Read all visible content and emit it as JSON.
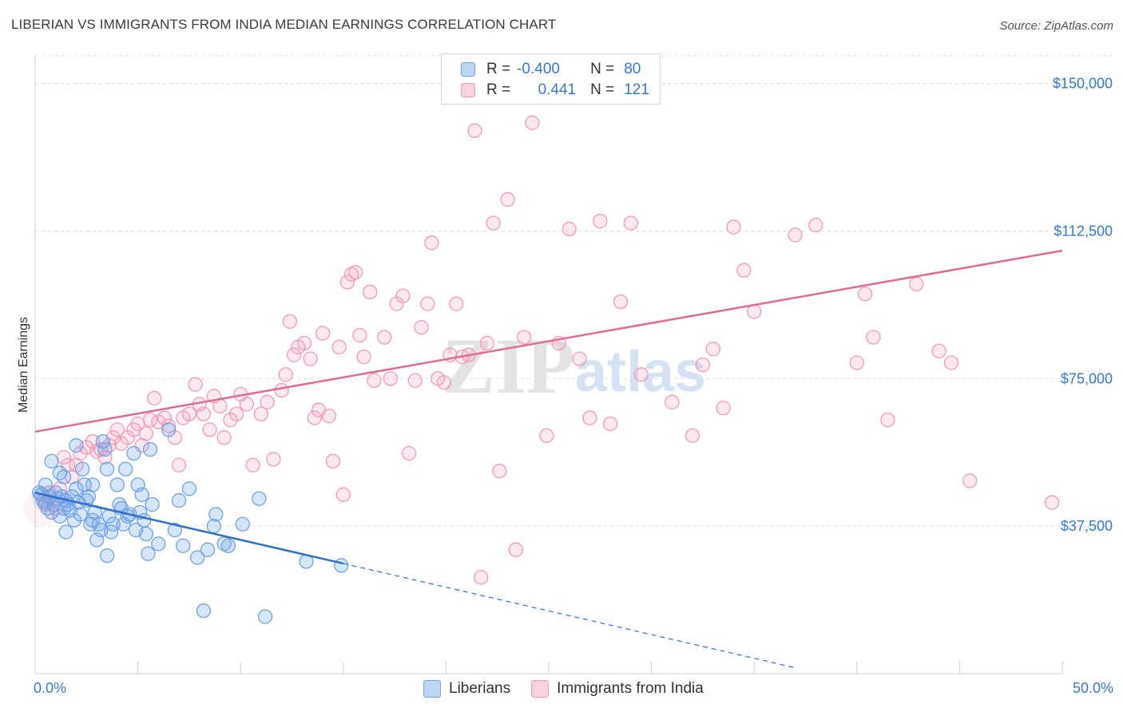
{
  "header": {
    "title": "LIBERIAN VS IMMIGRANTS FROM INDIA MEDIAN EARNINGS CORRELATION CHART",
    "source": "Source: ZipAtlas.com"
  },
  "legend": {
    "rows": [
      {
        "r_label": "R =",
        "r_value": "-0.400",
        "n_label": "N =",
        "n_value": "80",
        "color": "#6fa3e6"
      },
      {
        "r_label": "R =",
        "r_value": "0.441",
        "n_label": "N =",
        "n_value": "121",
        "color": "#f29ab8"
      }
    ],
    "items": [
      {
        "label": "Liberians",
        "color": "#6fa3e6"
      },
      {
        "label": "Immigrants from India",
        "color": "#f29ab8"
      }
    ]
  },
  "watermark": {
    "part1": "ZIP",
    "part2": "atlas"
  },
  "chart_data": {
    "type": "scatter",
    "xlabel": "",
    "ylabel": "Median Earnings",
    "xlim": [
      0,
      50
    ],
    "ylim": [
      0,
      157000
    ],
    "x_tick_labels": [
      "0.0%",
      "50.0%"
    ],
    "y_ticks": [
      {
        "value": 37500,
        "label": "$37,500"
      },
      {
        "value": 75000,
        "label": "$75,000"
      },
      {
        "value": 112500,
        "label": "$112,500"
      },
      {
        "value": 150000,
        "label": "$150,000"
      }
    ],
    "series": [
      {
        "name": "Liberians",
        "color": "#6fa3e6",
        "line_color": "#2f6fcc",
        "trend": {
          "x0": 0,
          "y0": 46000,
          "x1": 15,
          "y1": 28000,
          "dash_x1": 37,
          "dash_y1": 1500
        },
        "points": [
          [
            0.2,
            46000
          ],
          [
            0.3,
            45500
          ],
          [
            0.4,
            44000
          ],
          [
            0.5,
            43500
          ],
          [
            0.5,
            48000
          ],
          [
            0.6,
            42000
          ],
          [
            0.7,
            45000
          ],
          [
            0.8,
            41000
          ],
          [
            0.8,
            54000
          ],
          [
            0.9,
            43000
          ],
          [
            1.0,
            46000
          ],
          [
            1.1,
            44500
          ],
          [
            1.2,
            40000
          ],
          [
            1.2,
            51000
          ],
          [
            1.3,
            45000
          ],
          [
            1.4,
            42000
          ],
          [
            1.4,
            50000
          ],
          [
            1.5,
            36000
          ],
          [
            1.5,
            44000
          ],
          [
            1.6,
            43000
          ],
          [
            1.7,
            41500
          ],
          [
            1.8,
            45000
          ],
          [
            1.9,
            39000
          ],
          [
            2.0,
            58000
          ],
          [
            2.0,
            47000
          ],
          [
            2.1,
            43500
          ],
          [
            2.2,
            40500
          ],
          [
            2.3,
            52000
          ],
          [
            2.4,
            48000
          ],
          [
            2.5,
            44000
          ],
          [
            2.6,
            45000
          ],
          [
            2.7,
            38000
          ],
          [
            2.8,
            48000
          ],
          [
            2.9,
            41000
          ],
          [
            3.0,
            34000
          ],
          [
            3.1,
            38000
          ],
          [
            3.2,
            36500
          ],
          [
            3.3,
            59000
          ],
          [
            3.4,
            57000
          ],
          [
            3.5,
            52000
          ],
          [
            3.5,
            30000
          ],
          [
            3.6,
            40000
          ],
          [
            3.7,
            36000
          ],
          [
            3.8,
            38000
          ],
          [
            4.0,
            48000
          ],
          [
            4.1,
            43000
          ],
          [
            4.2,
            42000
          ],
          [
            4.3,
            38000
          ],
          [
            4.4,
            52000
          ],
          [
            4.5,
            40000
          ],
          [
            4.6,
            40500
          ],
          [
            4.8,
            56000
          ],
          [
            4.9,
            36500
          ],
          [
            5.0,
            48000
          ],
          [
            5.1,
            41000
          ],
          [
            5.2,
            45500
          ],
          [
            5.3,
            39000
          ],
          [
            5.4,
            35500
          ],
          [
            5.5,
            30500
          ],
          [
            5.6,
            57000
          ],
          [
            5.7,
            43000
          ],
          [
            6.0,
            33000
          ],
          [
            6.5,
            62000
          ],
          [
            6.8,
            36500
          ],
          [
            7.0,
            44000
          ],
          [
            7.2,
            32500
          ],
          [
            7.5,
            47000
          ],
          [
            7.9,
            29500
          ],
          [
            8.2,
            16000
          ],
          [
            8.4,
            31500
          ],
          [
            8.7,
            37500
          ],
          [
            8.8,
            40500
          ],
          [
            9.2,
            33000
          ],
          [
            9.4,
            32500
          ],
          [
            10.1,
            38000
          ],
          [
            10.9,
            44500
          ],
          [
            11.2,
            14500
          ],
          [
            13.2,
            28500
          ],
          [
            14.9,
            27500
          ],
          [
            2.8,
            39000
          ]
        ]
      },
      {
        "name": "Immigrants from India",
        "color": "#f29ab8",
        "line_color": "#e06b95",
        "trend": {
          "x0": 0,
          "y0": 61500,
          "x1": 50,
          "y1": 107500
        },
        "points": [
          [
            0.5,
            43000
          ],
          [
            0.7,
            46000
          ],
          [
            1.0,
            42000
          ],
          [
            1.2,
            47000
          ],
          [
            1.4,
            55000
          ],
          [
            1.6,
            53000
          ],
          [
            1.8,
            50000
          ],
          [
            2.0,
            53000
          ],
          [
            2.2,
            56000
          ],
          [
            2.5,
            57500
          ],
          [
            2.8,
            59000
          ],
          [
            3.0,
            56500
          ],
          [
            3.2,
            57000
          ],
          [
            3.4,
            55000
          ],
          [
            3.6,
            58000
          ],
          [
            3.8,
            60000
          ],
          [
            4.0,
            62000
          ],
          [
            4.2,
            58500
          ],
          [
            4.5,
            60000
          ],
          [
            4.8,
            62000
          ],
          [
            5.0,
            63500
          ],
          [
            5.2,
            58000
          ],
          [
            5.4,
            61000
          ],
          [
            5.6,
            64500
          ],
          [
            5.8,
            70000
          ],
          [
            6.0,
            64000
          ],
          [
            6.3,
            65000
          ],
          [
            6.5,
            63000
          ],
          [
            6.8,
            60000
          ],
          [
            7.0,
            53000
          ],
          [
            7.2,
            65000
          ],
          [
            7.5,
            66000
          ],
          [
            7.8,
            73500
          ],
          [
            8.0,
            68500
          ],
          [
            8.2,
            66000
          ],
          [
            8.5,
            62000
          ],
          [
            8.7,
            70500
          ],
          [
            9.0,
            68000
          ],
          [
            9.2,
            60000
          ],
          [
            9.5,
            64500
          ],
          [
            9.8,
            66000
          ],
          [
            10.0,
            71000
          ],
          [
            10.3,
            68500
          ],
          [
            10.6,
            53000
          ],
          [
            11.0,
            66000
          ],
          [
            11.3,
            69000
          ],
          [
            11.6,
            54500
          ],
          [
            12.0,
            72000
          ],
          [
            12.2,
            76000
          ],
          [
            12.4,
            89500
          ],
          [
            12.6,
            81000
          ],
          [
            12.8,
            83000
          ],
          [
            13.1,
            84000
          ],
          [
            13.4,
            80000
          ],
          [
            13.6,
            65000
          ],
          [
            13.8,
            67000
          ],
          [
            14.0,
            86500
          ],
          [
            14.3,
            65500
          ],
          [
            14.5,
            54000
          ],
          [
            14.8,
            83000
          ],
          [
            15.0,
            45500
          ],
          [
            15.2,
            99500
          ],
          [
            15.4,
            101500
          ],
          [
            15.6,
            102000
          ],
          [
            15.8,
            86000
          ],
          [
            16.0,
            80500
          ],
          [
            16.3,
            97000
          ],
          [
            16.5,
            74500
          ],
          [
            17.0,
            85500
          ],
          [
            17.3,
            75000
          ],
          [
            17.6,
            94000
          ],
          [
            17.9,
            96000
          ],
          [
            18.2,
            56000
          ],
          [
            18.5,
            74500
          ],
          [
            18.8,
            88000
          ],
          [
            19.1,
            94000
          ],
          [
            19.3,
            109500
          ],
          [
            19.6,
            75000
          ],
          [
            19.9,
            74000
          ],
          [
            20.2,
            81000
          ],
          [
            20.5,
            94000
          ],
          [
            20.8,
            80500
          ],
          [
            21.1,
            81000
          ],
          [
            21.4,
            138000
          ],
          [
            21.7,
            24500
          ],
          [
            22.0,
            84000
          ],
          [
            22.3,
            114500
          ],
          [
            22.6,
            51500
          ],
          [
            23.0,
            120500
          ],
          [
            23.4,
            31500
          ],
          [
            23.8,
            85500
          ],
          [
            24.2,
            140000
          ],
          [
            24.9,
            60500
          ],
          [
            25.5,
            84000
          ],
          [
            26.0,
            113000
          ],
          [
            26.5,
            80000
          ],
          [
            27.0,
            65000
          ],
          [
            27.5,
            115000
          ],
          [
            28.0,
            63500
          ],
          [
            28.5,
            94500
          ],
          [
            29.0,
            114500
          ],
          [
            29.5,
            76000
          ],
          [
            31.0,
            69000
          ],
          [
            32.0,
            60500
          ],
          [
            32.5,
            78500
          ],
          [
            33.0,
            82500
          ],
          [
            33.5,
            67500
          ],
          [
            34.0,
            113500
          ],
          [
            34.5,
            102500
          ],
          [
            35.0,
            92000
          ],
          [
            37.0,
            111500
          ],
          [
            38.0,
            114000
          ],
          [
            40.0,
            79000
          ],
          [
            40.4,
            96500
          ],
          [
            40.8,
            85500
          ],
          [
            41.5,
            64500
          ],
          [
            42.9,
            99000
          ],
          [
            44.0,
            82000
          ],
          [
            44.6,
            79000
          ],
          [
            45.5,
            49000
          ],
          [
            49.5,
            43500
          ]
        ]
      }
    ]
  }
}
